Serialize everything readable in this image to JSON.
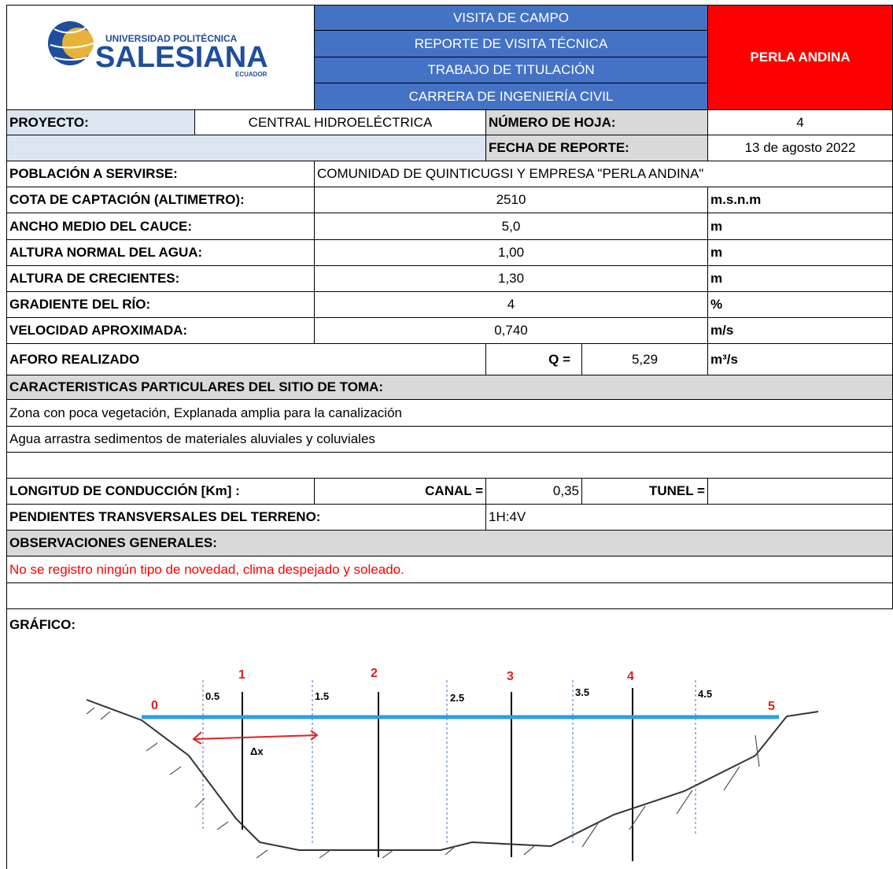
{
  "header": {
    "university": "UNIVERSIDAD POLITÉCNICA",
    "logo_name": "SALESIANA",
    "country": "ECUADOR",
    "lines": [
      "VISITA DE CAMPO",
      "REPORTE DE VISITA TÉCNICA",
      "TRABAJO DE TITULACIÓN",
      "CARRERA DE INGENIERÍA CIVIL"
    ],
    "site": "PERLA ANDINA"
  },
  "project": {
    "label": "PROYECTO:",
    "value": "CENTRAL HIDROELÉCTRICA",
    "sheet_label": "NÚMERO DE HOJA:",
    "sheet": "4",
    "date_label": "FECHA DE REPORTE:",
    "date": "13 de agosto 2022"
  },
  "rows": [
    {
      "label": "POBLACIÓN A SERVIRSE:",
      "value": "COMUNIDAD DE QUINTICUGSI Y EMPRESA \"PERLA ANDINA\""
    },
    {
      "label": "COTA DE CAPTACIÓN (ALTIMETRO):",
      "value": "2510",
      "unit": "m.s.n.m"
    },
    {
      "label": "ANCHO MEDIO DEL CAUCE:",
      "value": "5,0",
      "unit": "m"
    },
    {
      "label": "ALTURA NORMAL DEL AGUA:",
      "value": "1,00",
      "unit": "m"
    },
    {
      "label": "ALTURA DE CRECIENTES:",
      "value": "1,30",
      "unit": "m"
    },
    {
      "label": "GRADIENTE DEL RÍO:",
      "value": "4",
      "unit": "%"
    },
    {
      "label": "VELOCIDAD APROXIMADA:",
      "value": "0,740",
      "unit": "m/s"
    }
  ],
  "flow": {
    "label": "AFORO REALIZADO",
    "symbol": "Q =",
    "value": "5,29",
    "unit": "m³/s"
  },
  "site_characteristics": {
    "title": "CARACTERISTICAS PARTICULARES DEL SITIO DE TOMA:",
    "lines": [
      "Zona con poca vegetación, Explanada amplia para la canalización",
      "Agua arrastra sedimentos de materiales aluviales y coluviales"
    ]
  },
  "conduction": {
    "label": "LONGITUD DE CONDUCCIÓN [Km] :",
    "canal_label": "CANAL =",
    "canal": "0,35",
    "tunnel_label": "TUNEL ="
  },
  "slopes": {
    "label": "PENDIENTES TRANSVERSALES DEL TERRENO:",
    "value": "1H:4V"
  },
  "observations": {
    "title": "OBSERVACIONES GENERALES:",
    "text": "No se registro ningún tipo de novedad, clima despejado y soleado."
  },
  "graphic": {
    "title": "GRÁFICO:",
    "stations": [
      "0",
      "0.5",
      "1",
      "1.5",
      "2",
      "2.5",
      "3",
      "3.5",
      "4",
      "4.5",
      "5"
    ],
    "dx": "Δx"
  }
}
